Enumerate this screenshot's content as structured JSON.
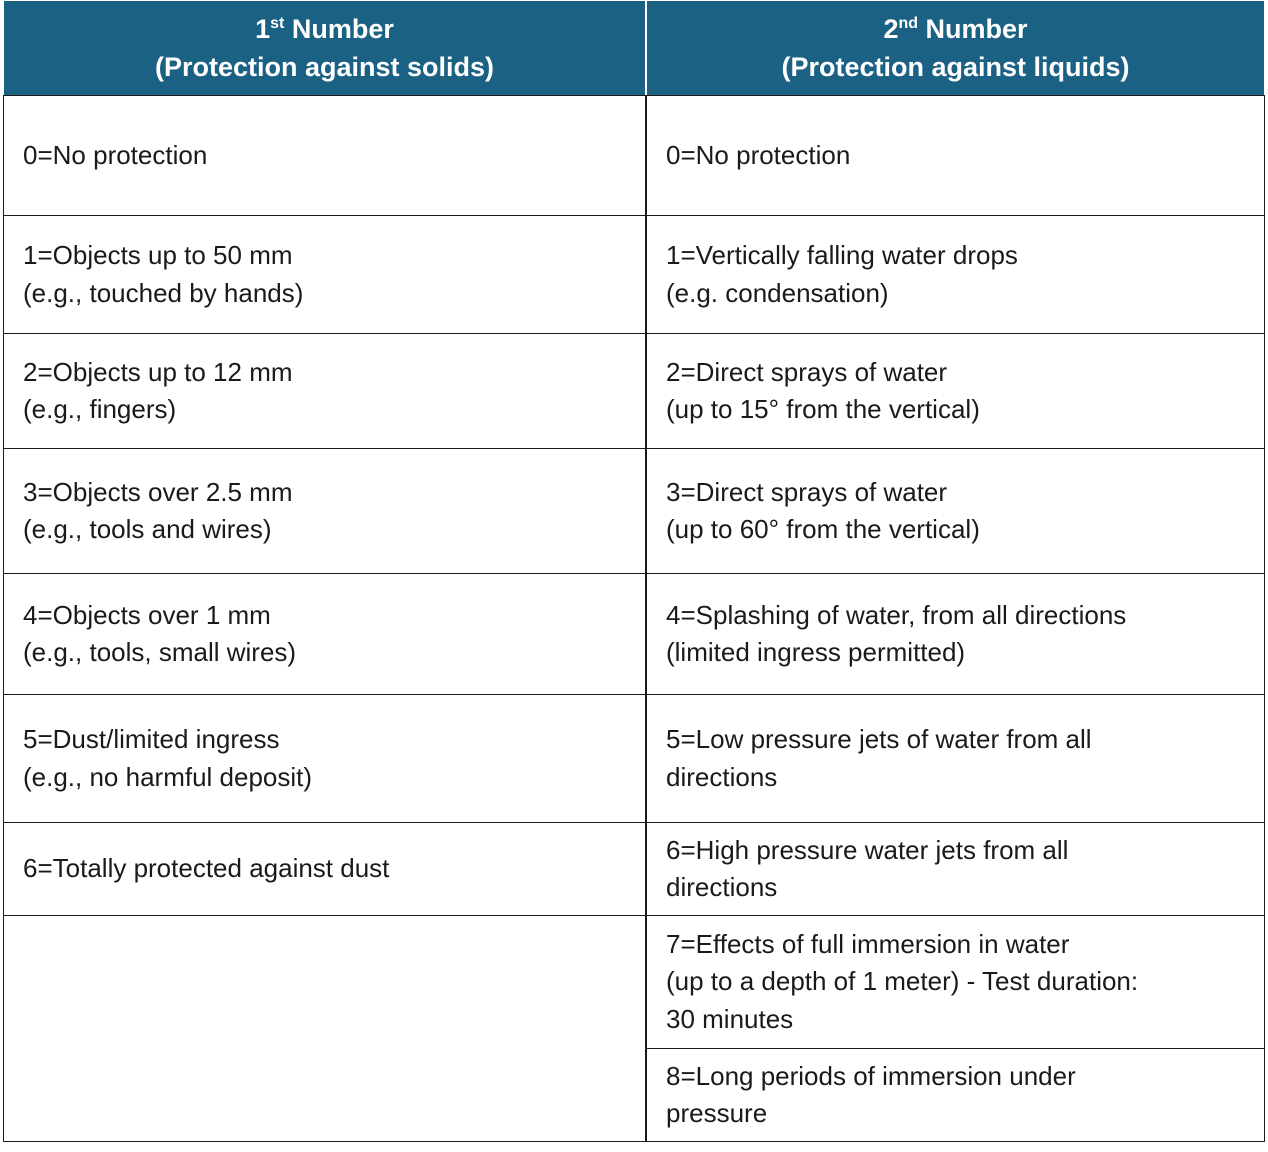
{
  "table": {
    "header": [
      {
        "ordinal": "1",
        "suffix": "st",
        "label": "Number",
        "subtitle": "(Protection against solids)"
      },
      {
        "ordinal": "2",
        "suffix": "nd",
        "label": "Number",
        "subtitle": "(Protection against liquids)"
      }
    ],
    "rows": [
      {
        "solids": [
          "0=No protection"
        ],
        "liquids": [
          "0=No protection"
        ]
      },
      {
        "solids": [
          "1=Objects up to 50 mm",
          "(e.g., touched by hands)"
        ],
        "liquids": [
          "1=Vertically falling water drops",
          "(e.g. condensation)"
        ]
      },
      {
        "solids": [
          "2=Objects up to 12 mm",
          "(e.g., fingers)"
        ],
        "liquids": [
          "2=Direct sprays of water",
          "(up to 15° from the vertical)"
        ]
      },
      {
        "solids": [
          "3=Objects over 2.5 mm",
          "(e.g., tools and wires)"
        ],
        "liquids": [
          "3=Direct sprays of water",
          "(up to 60° from the vertical)"
        ]
      },
      {
        "solids": [
          "4=Objects over 1 mm",
          "(e.g., tools, small wires)"
        ],
        "liquids": [
          "4=Splashing of water, from all directions",
          "(limited ingress permitted)"
        ]
      },
      {
        "solids": [
          "5=Dust/limited ingress",
          "(e.g., no harmful deposit)"
        ],
        "liquids": [
          "5=Low pressure jets of water from all",
          "directions"
        ]
      },
      {
        "solids": [
          "6=Totally protected against dust"
        ],
        "liquids": [
          "6=High pressure water jets from all",
          "directions"
        ]
      },
      {
        "liquids": [
          "7=Effects of full immersion in water",
          "(up to a depth of 1 meter) - Test duration:",
          "30 minutes"
        ]
      },
      {
        "liquids": [
          "8=Long periods of immersion under",
          "pressure"
        ]
      }
    ]
  }
}
